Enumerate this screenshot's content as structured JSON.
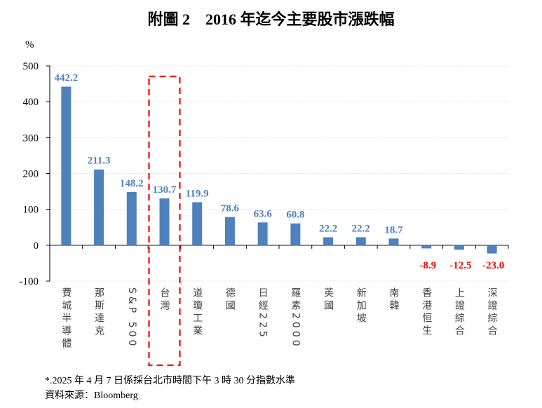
{
  "chart_data": {
    "type": "bar",
    "title": "附圖 2　2016 年迄今主要股市漲跌幅",
    "ylabel": "%",
    "xlabel": "",
    "ylim": [
      -100,
      500
    ],
    "yticks": [
      "500",
      "400",
      "300",
      "200",
      "100",
      "0",
      "-100"
    ],
    "grid": true,
    "categories": [
      "費城半導體",
      "那斯達克",
      "S&P 500",
      "台灣",
      "道瓊工業",
      "德國",
      "日經225",
      "羅素2000",
      "英國",
      "新加坡",
      "南韓",
      "香港恒生",
      "上證綜合",
      "深證綜合"
    ],
    "values": [
      442.2,
      211.3,
      148.2,
      130.7,
      119.9,
      78.6,
      63.6,
      60.8,
      22.2,
      22.2,
      18.7,
      -8.9,
      -12.5,
      -23.0
    ],
    "value_labels": [
      "442.2",
      "211.3",
      "148.2",
      "130.7",
      "119.9",
      "78.6",
      "63.6",
      "60.8",
      "22.2",
      "22.2",
      "18.7",
      "-8.9",
      "-12.5",
      "-23.0"
    ],
    "highlight_category": "台灣",
    "colors": {
      "bar": "#4f81bd",
      "positive_label": "#4f81bd",
      "negative_label": "#ff0000",
      "highlight_box": "#ff0000"
    }
  },
  "notes": {
    "footnote": "*.2025 年 4 月 7 日係採台北市時間下午 3 時 30 分指數水準",
    "source": "資料來源：Bloomberg"
  }
}
